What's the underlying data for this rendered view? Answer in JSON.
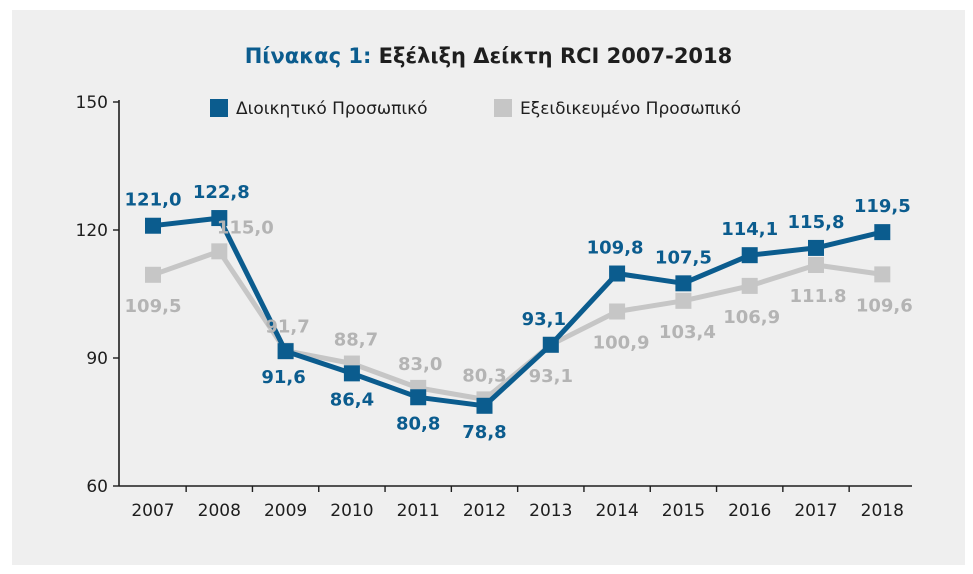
{
  "title": {
    "lead": "Πίνακας 1:",
    "text": "Εξέλιξη Δείκτη RCI 2007-2018"
  },
  "colors": {
    "series1": "#0b5c8e",
    "series2": "#c6c6c6",
    "label2": "#b4b4b4",
    "axis": "#1e1e1e",
    "background": "#efefef"
  },
  "chart_data": {
    "type": "line",
    "title": "Πίνακας 1: Εξέλιξη Δείκτη RCI 2007-2018",
    "categories": [
      "2007",
      "2008",
      "2009",
      "2010",
      "2011",
      "2012",
      "2013",
      "2014",
      "2015",
      "2016",
      "2017",
      "2018"
    ],
    "ylim": [
      60,
      150
    ],
    "yticks": [
      "60",
      "90",
      "120",
      "150"
    ],
    "grid": false,
    "legend": "top",
    "series": [
      {
        "name": "Διοικητικό Προσωπικό",
        "values": [
          121.0,
          122.8,
          91.6,
          86.4,
          80.8,
          78.8,
          93.1,
          109.8,
          107.5,
          114.1,
          115.8,
          119.5
        ],
        "labels": [
          "121,0",
          "122,8",
          "91,6",
          "86,4",
          "80,8",
          "78,8",
          "93,1",
          "109,8",
          "107,5",
          "114,1",
          "115,8",
          "119,5"
        ]
      },
      {
        "name": "Εξειδικευμένο Προσωπικό",
        "values": [
          109.5,
          115.0,
          91.7,
          88.7,
          83.0,
          80.3,
          93.1,
          100.9,
          103.4,
          106.9,
          111.8,
          109.6
        ],
        "labels": [
          "109,5",
          "115,0",
          "91,7",
          "88,7",
          "83,0",
          "80,3",
          "93,1",
          "100,9",
          "103,4",
          "106,9",
          "111.8",
          "109,6"
        ]
      }
    ]
  }
}
